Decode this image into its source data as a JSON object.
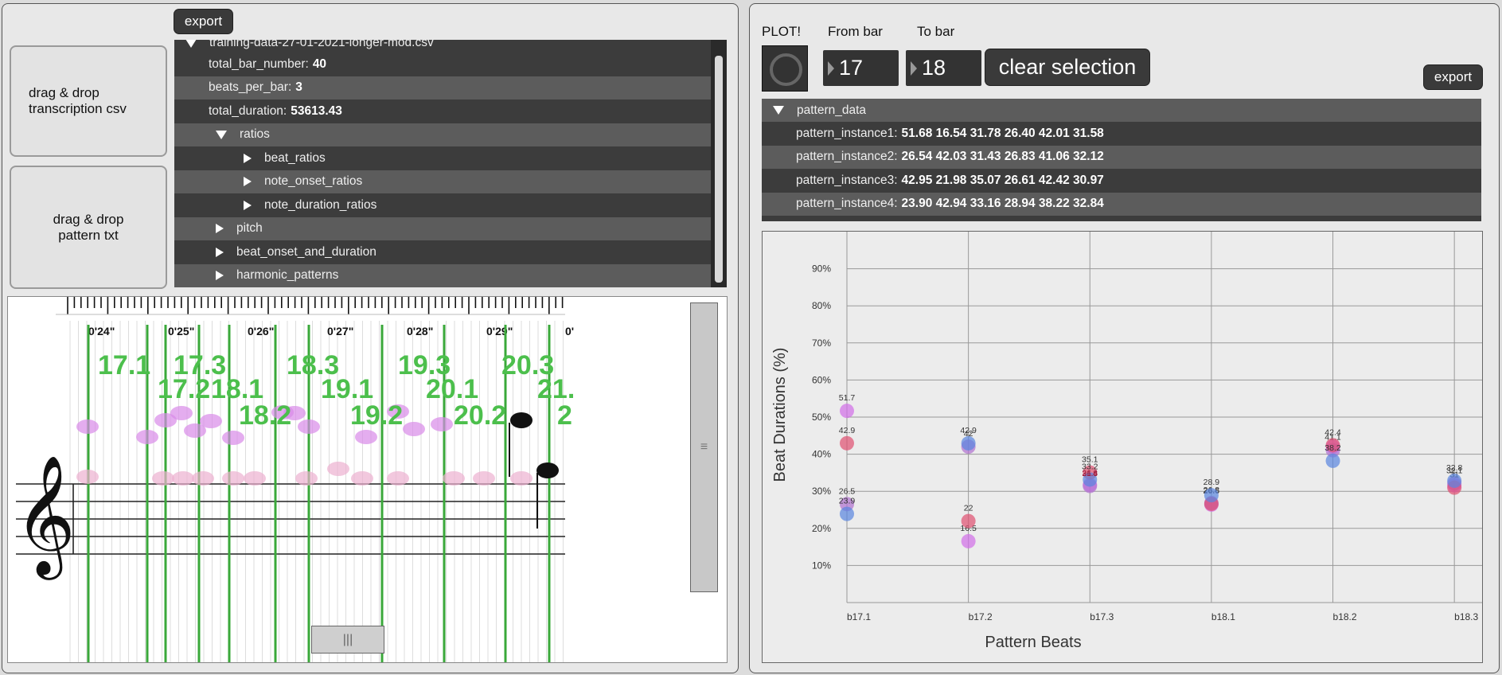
{
  "left": {
    "export_label": "export",
    "drop_csv_label": "drag & drop transcription csv",
    "drop_pattern_label": "drag & drop pattern txt",
    "tree": {
      "file_name": "training-data-27-01-2021-longer-mod.csv",
      "rows": [
        {
          "key": "total_bar_number:",
          "value": "40",
          "indent": 0,
          "kind": "leaf"
        },
        {
          "key": "beats_per_bar:",
          "value": "3",
          "indent": 0,
          "kind": "leaf"
        },
        {
          "key": "total_duration:",
          "value": "53613.43",
          "indent": 0,
          "kind": "leaf"
        },
        {
          "key": "ratios",
          "value": "",
          "indent": 1,
          "kind": "open"
        },
        {
          "key": "beat_ratios",
          "value": "",
          "indent": 2,
          "kind": "closed"
        },
        {
          "key": "note_onset_ratios",
          "value": "",
          "indent": 2,
          "kind": "closed"
        },
        {
          "key": "note_duration_ratios",
          "value": "",
          "indent": 2,
          "kind": "closed"
        },
        {
          "key": "pitch",
          "value": "",
          "indent": 1,
          "kind": "closed"
        },
        {
          "key": "beat_onset_and_duration",
          "value": "",
          "indent": 1,
          "kind": "closed"
        },
        {
          "key": "harmonic_patterns",
          "value": "",
          "indent": 1,
          "kind": "closed"
        }
      ]
    },
    "timeline": {
      "times": [
        "0'24\"",
        "0'25\"",
        "0'26\"",
        "0'27\"",
        "0'28\"",
        "0'29\"",
        "0'"
      ],
      "beat_labels": [
        "17.1",
        "17.3",
        "17.2",
        "18.1",
        "18.2",
        "18.3",
        "19.1",
        "19.2",
        "19.3",
        "20.1",
        "20.2",
        "20.3",
        "21.",
        "2"
      ]
    },
    "hscroll_glyph": "|||",
    "vscroll_glyph": "≡"
  },
  "right": {
    "plot_label": "PLOT!",
    "from_bar_label": "From bar",
    "to_bar_label": "To bar",
    "from_bar_value": "17",
    "to_bar_value": "18",
    "clear_label": "clear selection",
    "export_label": "export",
    "pattern_header": "pattern_data",
    "patterns": [
      {
        "key": "pattern_instance1:",
        "values": "51.68 16.54 31.78 26.40 42.01 31.58"
      },
      {
        "key": "pattern_instance2:",
        "values": "26.54 42.03 31.43 26.83 41.06 32.12"
      },
      {
        "key": "pattern_instance3:",
        "values": "42.95 21.98 35.07 26.61 42.42 30.97"
      },
      {
        "key": "pattern_instance4:",
        "values": "23.90 42.94 33.16 28.94 38.22 32.84"
      }
    ]
  },
  "chart_data": {
    "type": "scatter",
    "title": "",
    "xlabel": "Pattern Beats",
    "ylabel": "Beat Durations (%)",
    "categories": [
      "b17.1",
      "b17.2",
      "b17.3",
      "b18.1",
      "b18.2",
      "b18.3"
    ],
    "ylim": [
      0,
      100
    ],
    "yticks": [
      "10%",
      "20%",
      "30%",
      "40%",
      "50%",
      "60%",
      "70%",
      "80%",
      "90%"
    ],
    "ytick_values": [
      10,
      20,
      30,
      40,
      50,
      60,
      70,
      80,
      90
    ],
    "grid": true,
    "series": [
      {
        "color": "#d16ee8",
        "values": [
          51.68,
          16.54,
          31.78,
          26.4,
          42.01,
          31.58
        ],
        "labels": [
          "51.7",
          "16.5",
          "",
          "",
          "",
          ""
        ]
      },
      {
        "color": "#b070d0",
        "values": [
          26.54,
          42.03,
          31.43,
          26.83,
          41.06,
          32.12
        ],
        "labels": [
          "26.5",
          "42",
          "",
          "26.8",
          "41.1",
          "32.1"
        ]
      },
      {
        "color": "#e05070",
        "values": [
          42.95,
          21.98,
          35.07,
          26.61,
          42.42,
          30.97
        ],
        "labels": [
          "42.9",
          "22",
          "35.1",
          "26.6",
          "42.4",
          "31"
        ]
      },
      {
        "color": "#5a86e0",
        "values": [
          23.9,
          42.94,
          33.16,
          28.94,
          38.22,
          32.84
        ],
        "labels": [
          "23.9",
          "42.9",
          "33.2",
          "28.9",
          "38.2",
          "32.8"
        ]
      }
    ],
    "extra_labels": [
      "31.8",
      "31.4",
      "26.4",
      "31.6"
    ]
  }
}
